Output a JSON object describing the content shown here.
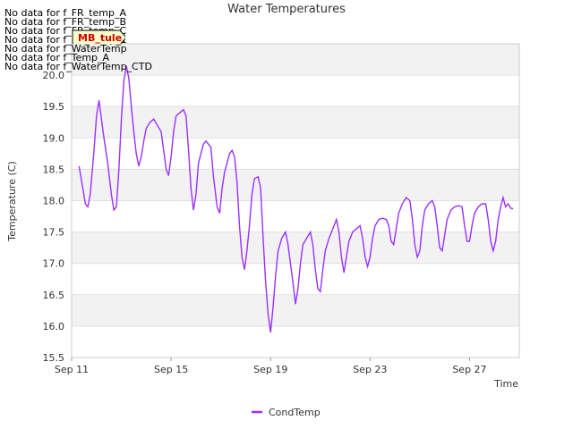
{
  "no_data_lines": [
    "No data for f_FR_temp_A",
    "No data for f_FR_temp_B",
    "No data for f_FR_temp_C",
    "No data for f_FD_Temp_1",
    "No data for f_WaterTemp",
    "No data for f_Temp_A",
    "No data for f_WaterTemp_CTD"
  ],
  "badge": {
    "label": "MB_tule"
  },
  "chart_data": {
    "type": "line",
    "title": "Water Temperatures",
    "xlabel": "Time",
    "ylabel": "Temperature (C)",
    "ylim": [
      15.5,
      20.5
    ],
    "yticks": [
      15.5,
      16.0,
      16.5,
      17.0,
      17.5,
      18.0,
      18.5,
      19.0,
      19.5,
      20.0
    ],
    "x_ticks": [
      {
        "label": "Sep 11",
        "day": 11
      },
      {
        "label": "Sep 15",
        "day": 15
      },
      {
        "label": "Sep 19",
        "day": 19
      },
      {
        "label": "Sep 23",
        "day": 23
      },
      {
        "label": "Sep 27",
        "day": 27
      }
    ],
    "xlim_days": [
      11,
      29
    ],
    "grid": "horizontal bands",
    "legend_position": "bottom-center",
    "series": [
      {
        "name": "CondTemp",
        "color": "#9b30ff",
        "points": [
          [
            11.3,
            18.55
          ],
          [
            11.45,
            18.2
          ],
          [
            11.55,
            17.95
          ],
          [
            11.65,
            17.9
          ],
          [
            11.75,
            18.1
          ],
          [
            11.9,
            18.8
          ],
          [
            12.0,
            19.35
          ],
          [
            12.1,
            19.6
          ],
          [
            12.2,
            19.3
          ],
          [
            12.3,
            19.0
          ],
          [
            12.45,
            18.6
          ],
          [
            12.6,
            18.1
          ],
          [
            12.7,
            17.85
          ],
          [
            12.8,
            17.9
          ],
          [
            12.9,
            18.5
          ],
          [
            13.0,
            19.3
          ],
          [
            13.1,
            19.9
          ],
          [
            13.2,
            20.15
          ],
          [
            13.3,
            19.95
          ],
          [
            13.4,
            19.5
          ],
          [
            13.5,
            19.1
          ],
          [
            13.6,
            18.75
          ],
          [
            13.7,
            18.55
          ],
          [
            13.8,
            18.7
          ],
          [
            13.9,
            18.95
          ],
          [
            14.0,
            19.15
          ],
          [
            14.15,
            19.25
          ],
          [
            14.3,
            19.3
          ],
          [
            14.45,
            19.2
          ],
          [
            14.6,
            19.1
          ],
          [
            14.7,
            18.8
          ],
          [
            14.8,
            18.5
          ],
          [
            14.9,
            18.4
          ],
          [
            15.0,
            18.7
          ],
          [
            15.1,
            19.1
          ],
          [
            15.2,
            19.35
          ],
          [
            15.35,
            19.4
          ],
          [
            15.5,
            19.45
          ],
          [
            15.6,
            19.35
          ],
          [
            15.7,
            18.8
          ],
          [
            15.8,
            18.2
          ],
          [
            15.9,
            17.85
          ],
          [
            16.0,
            18.1
          ],
          [
            16.1,
            18.6
          ],
          [
            16.2,
            18.75
          ],
          [
            16.3,
            18.9
          ],
          [
            16.4,
            18.95
          ],
          [
            16.5,
            18.9
          ],
          [
            16.6,
            18.85
          ],
          [
            16.7,
            18.4
          ],
          [
            16.85,
            17.9
          ],
          [
            16.95,
            17.8
          ],
          [
            17.05,
            18.2
          ],
          [
            17.15,
            18.45
          ],
          [
            17.25,
            18.6
          ],
          [
            17.35,
            18.75
          ],
          [
            17.45,
            18.8
          ],
          [
            17.55,
            18.7
          ],
          [
            17.65,
            18.3
          ],
          [
            17.75,
            17.6
          ],
          [
            17.85,
            17.1
          ],
          [
            17.95,
            16.9
          ],
          [
            18.05,
            17.2
          ],
          [
            18.15,
            17.6
          ],
          [
            18.25,
            18.1
          ],
          [
            18.35,
            18.35
          ],
          [
            18.5,
            18.38
          ],
          [
            18.6,
            18.2
          ],
          [
            18.7,
            17.4
          ],
          [
            18.8,
            16.7
          ],
          [
            18.9,
            16.2
          ],
          [
            19.0,
            15.9
          ],
          [
            19.1,
            16.3
          ],
          [
            19.2,
            16.8
          ],
          [
            19.3,
            17.2
          ],
          [
            19.45,
            17.4
          ],
          [
            19.6,
            17.5
          ],
          [
            19.7,
            17.3
          ],
          [
            19.8,
            17.0
          ],
          [
            19.9,
            16.7
          ],
          [
            20.0,
            16.35
          ],
          [
            20.1,
            16.6
          ],
          [
            20.2,
            17.0
          ],
          [
            20.3,
            17.3
          ],
          [
            20.45,
            17.4
          ],
          [
            20.6,
            17.5
          ],
          [
            20.7,
            17.3
          ],
          [
            20.8,
            16.9
          ],
          [
            20.9,
            16.6
          ],
          [
            21.0,
            16.55
          ],
          [
            21.1,
            16.9
          ],
          [
            21.2,
            17.2
          ],
          [
            21.35,
            17.4
          ],
          [
            21.5,
            17.55
          ],
          [
            21.65,
            17.7
          ],
          [
            21.75,
            17.5
          ],
          [
            21.85,
            17.1
          ],
          [
            21.95,
            16.85
          ],
          [
            22.05,
            17.1
          ],
          [
            22.15,
            17.35
          ],
          [
            22.3,
            17.5
          ],
          [
            22.45,
            17.55
          ],
          [
            22.6,
            17.6
          ],
          [
            22.7,
            17.4
          ],
          [
            22.8,
            17.1
          ],
          [
            22.9,
            16.95
          ],
          [
            23.0,
            17.1
          ],
          [
            23.1,
            17.4
          ],
          [
            23.2,
            17.6
          ],
          [
            23.35,
            17.7
          ],
          [
            23.5,
            17.72
          ],
          [
            23.65,
            17.7
          ],
          [
            23.75,
            17.6
          ],
          [
            23.85,
            17.35
          ],
          [
            23.95,
            17.3
          ],
          [
            24.05,
            17.55
          ],
          [
            24.15,
            17.8
          ],
          [
            24.3,
            17.95
          ],
          [
            24.45,
            18.05
          ],
          [
            24.6,
            18.0
          ],
          [
            24.7,
            17.7
          ],
          [
            24.8,
            17.3
          ],
          [
            24.9,
            17.1
          ],
          [
            25.0,
            17.2
          ],
          [
            25.1,
            17.6
          ],
          [
            25.2,
            17.85
          ],
          [
            25.35,
            17.95
          ],
          [
            25.5,
            18.0
          ],
          [
            25.6,
            17.9
          ],
          [
            25.7,
            17.6
          ],
          [
            25.8,
            17.25
          ],
          [
            25.9,
            17.2
          ],
          [
            26.0,
            17.45
          ],
          [
            26.1,
            17.7
          ],
          [
            26.25,
            17.85
          ],
          [
            26.4,
            17.9
          ],
          [
            26.55,
            17.92
          ],
          [
            26.7,
            17.9
          ],
          [
            26.8,
            17.6
          ],
          [
            26.9,
            17.35
          ],
          [
            27.0,
            17.35
          ],
          [
            27.1,
            17.6
          ],
          [
            27.2,
            17.8
          ],
          [
            27.35,
            17.9
          ],
          [
            27.5,
            17.95
          ],
          [
            27.65,
            17.95
          ],
          [
            27.75,
            17.7
          ],
          [
            27.85,
            17.35
          ],
          [
            27.95,
            17.2
          ],
          [
            28.05,
            17.35
          ],
          [
            28.15,
            17.7
          ],
          [
            28.25,
            17.9
          ],
          [
            28.35,
            18.05
          ],
          [
            28.45,
            17.9
          ],
          [
            28.55,
            17.95
          ],
          [
            28.65,
            17.88
          ],
          [
            28.75,
            17.87
          ]
        ]
      }
    ]
  }
}
